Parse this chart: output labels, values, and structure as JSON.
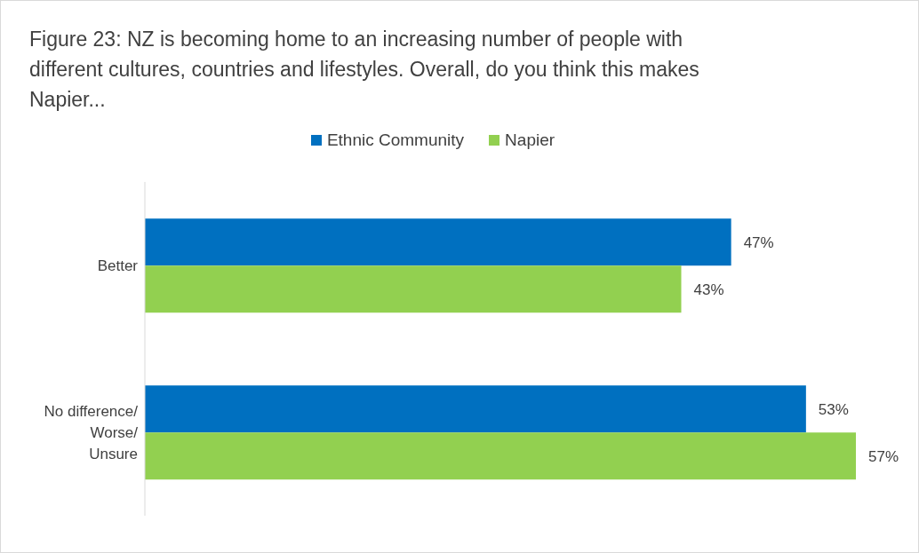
{
  "chart_data": {
    "type": "bar",
    "orientation": "horizontal",
    "title": "Figure 23: NZ is becoming home to an increasing number of people with different cultures, countries and lifestyles. Overall, do you think this makes Napier...",
    "categories": [
      "Better",
      "No difference/Worse/Unsure"
    ],
    "series": [
      {
        "name": "Ethnic Community",
        "color": "#0070c0",
        "values": [
          47,
          53
        ],
        "value_labels": [
          "47%",
          "53%"
        ]
      },
      {
        "name": "Napier",
        "color": "#92d050",
        "values": [
          43,
          57
        ],
        "value_labels": [
          "43%",
          "57%"
        ]
      }
    ],
    "legend": "top"
  }
}
